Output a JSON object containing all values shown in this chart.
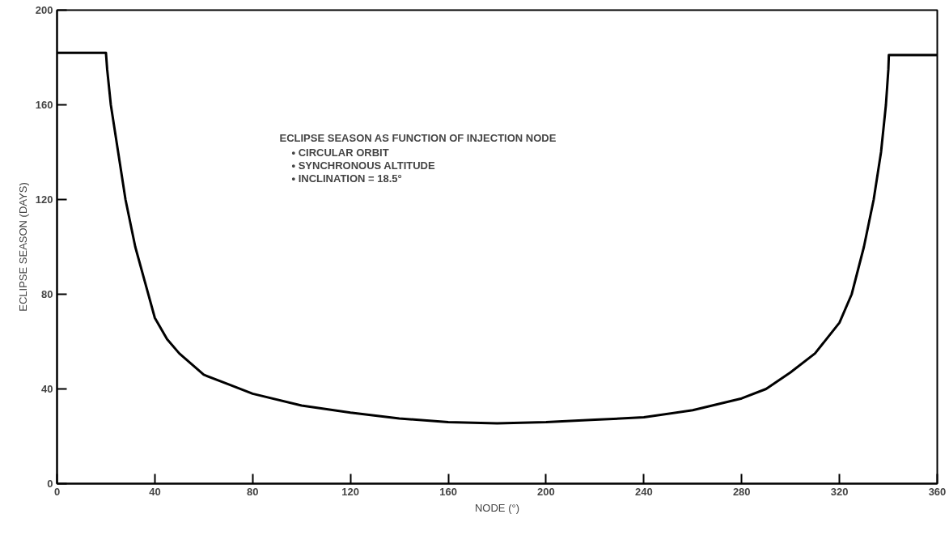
{
  "chart_data": {
    "type": "line",
    "title": "ECLIPSE SEASON AS FUNCTION OF INJECTION NODE",
    "xlabel": "NODE (°)",
    "ylabel": "ECLIPSE SEASON (DAYS)",
    "annotations": [
      "• CIRCULAR ORBIT",
      "• SYNCHRONOUS ALTITUDE",
      "• INCLINATION = 18.5°"
    ],
    "series": [
      {
        "color": "#000000",
        "x": [
          0,
          20,
          20.5,
          22,
          25,
          28,
          32,
          36,
          40,
          45,
          50,
          60,
          70,
          80,
          100,
          120,
          140,
          160,
          180,
          200,
          220,
          240,
          260,
          280,
          290,
          300,
          310,
          320,
          325,
          330,
          334,
          337,
          339,
          340,
          340.2,
          360
        ],
        "values": [
          182,
          182,
          175,
          160,
          140,
          120,
          100,
          85,
          70,
          61,
          55,
          46,
          42,
          38,
          33,
          30,
          27.5,
          26,
          25.5,
          26,
          27,
          28,
          31,
          36,
          40,
          47,
          55,
          68,
          80,
          100,
          120,
          140,
          160,
          175,
          181,
          181
        ]
      }
    ],
    "xlim": [
      0,
      360
    ],
    "xticks": [
      0,
      40,
      80,
      120,
      160,
      200,
      240,
      280,
      320,
      360
    ],
    "ylim": [
      0,
      200
    ],
    "yticks": [
      0,
      40,
      80,
      120,
      160,
      200
    ],
    "grid": false,
    "marker": "none",
    "line_style": "solid"
  }
}
